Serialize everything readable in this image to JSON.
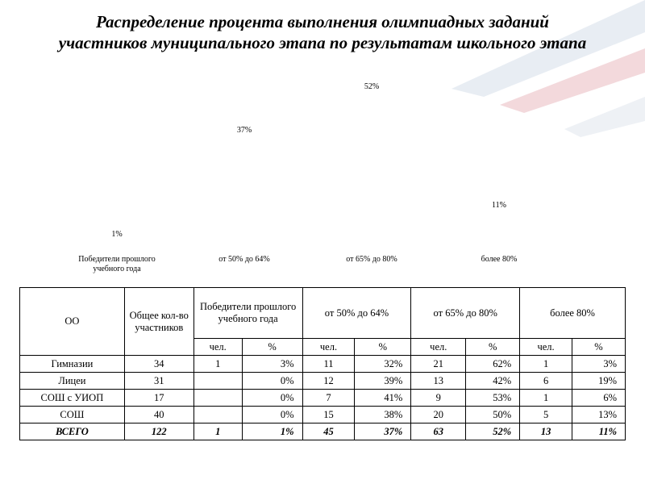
{
  "chart_data": {
    "type": "bar",
    "title": [
      "Распределение процента выполнения олимпиадных заданий",
      "участников муниципального этапа по результатам школьного этапа"
    ],
    "categories": [
      "Победители прошлого учебного года",
      "от 50% до 64%",
      "от 65% до 80%",
      "более 80%"
    ],
    "values": [
      1,
      37,
      52,
      11
    ],
    "value_labels": [
      "1%",
      "37%",
      "52%",
      "11%"
    ],
    "color": "#3ea7e0"
  },
  "table": {
    "header": [
      "ОО",
      "Общее кол-во участников",
      "Победители прошлого учебного года",
      "от 50% до 64%",
      "от 65% до 80%",
      "более 80%"
    ],
    "subheader": [
      "чел.",
      "%",
      "чел.",
      "%",
      "чел.",
      "%",
      "чел.",
      "%"
    ],
    "rows": [
      [
        "Гимназии",
        "34",
        "1",
        "3%",
        "11",
        "32%",
        "21",
        "62%",
        "1",
        "3%"
      ],
      [
        "Лицеи",
        "31",
        null,
        "0%",
        "12",
        "39%",
        "13",
        "42%",
        "6",
        "19%"
      ],
      [
        "СОШ с УИОП",
        "17",
        null,
        "0%",
        "7",
        "41%",
        "9",
        "53%",
        "1",
        "6%"
      ],
      [
        "СОШ",
        "40",
        null,
        "0%",
        "15",
        "38%",
        "20",
        "50%",
        "5",
        "13%"
      ],
      [
        "ВСЕГО",
        "122",
        "1",
        "1%",
        "45",
        "37%",
        "63",
        "52%",
        "13",
        "11%"
      ]
    ]
  }
}
